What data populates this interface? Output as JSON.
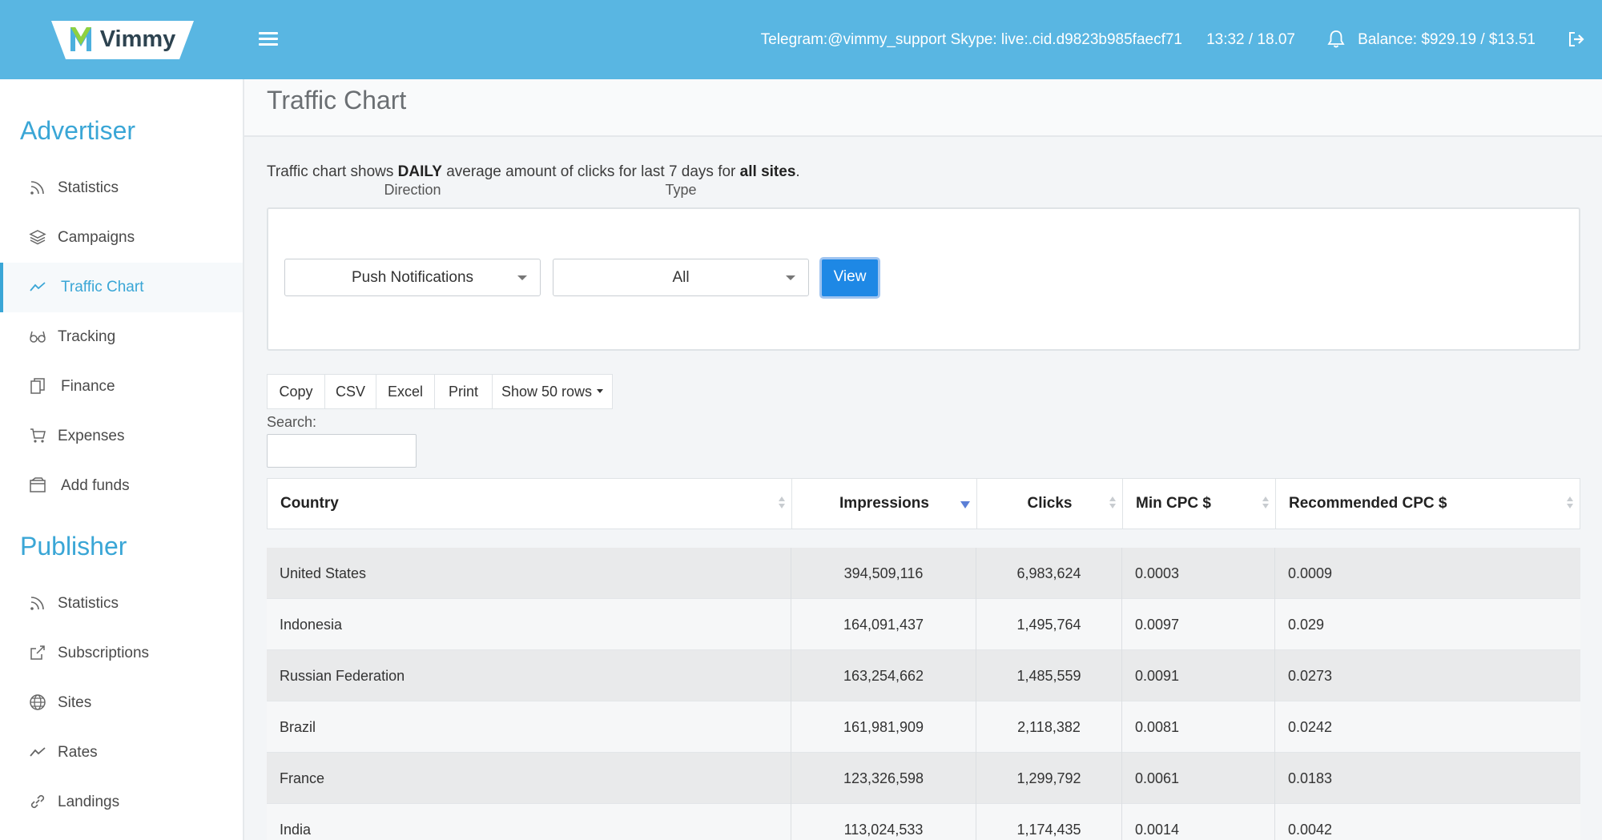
{
  "header": {
    "logo_text": "Vimmy",
    "contacts": "Telegram:@vimmy_support Skype: live:.cid.d9823b985faecf71",
    "time": "13:32 / 18.07",
    "balance": "Balance: $929.19 / $13.51"
  },
  "sidebar": {
    "advertiser_heading": "Advertiser",
    "advertiser_items": [
      {
        "label": "Statistics",
        "icon": "rss-icon"
      },
      {
        "label": "Campaigns",
        "icon": "layers-icon"
      },
      {
        "label": "Traffic Chart",
        "icon": "trend-line-icon",
        "active": true
      },
      {
        "label": "Tracking",
        "icon": "glasses-icon"
      },
      {
        "label": "Finance",
        "icon": "documents-icon"
      },
      {
        "label": "Expenses",
        "icon": "cart-icon"
      },
      {
        "label": "Add funds",
        "icon": "wallet-icon"
      }
    ],
    "publisher_heading": "Publisher",
    "publisher_items": [
      {
        "label": "Statistics",
        "icon": "rss-icon"
      },
      {
        "label": "Subscriptions",
        "icon": "share-icon"
      },
      {
        "label": "Sites",
        "icon": "globe-icon"
      },
      {
        "label": "Rates",
        "icon": "trend-line-icon"
      },
      {
        "label": "Landings",
        "icon": "link-icon"
      }
    ]
  },
  "main": {
    "title": "Traffic Chart",
    "description": {
      "part1": "Traffic chart shows ",
      "bold1": "DAILY",
      "part2": " average amount of clicks for last 7 days for ",
      "bold2": "all sites",
      "part3": "."
    },
    "filters": {
      "direction_label": "Direction",
      "direction_value": "Push Notifications",
      "type_label": "Type",
      "type_value": "All",
      "view_button": "View"
    },
    "toolbar": {
      "copy": "Copy",
      "csv": "CSV",
      "excel": "Excel",
      "print": "Print",
      "show_rows": "Show 50 rows"
    },
    "search": {
      "label": "Search:",
      "value": ""
    },
    "table": {
      "columns": [
        "Country",
        "Impressions",
        "Clicks",
        "Min CPC $",
        "Recommended CPC $"
      ],
      "rows": [
        [
          "United States",
          "394,509,116",
          "6,983,624",
          "0.0003",
          "0.0009"
        ],
        [
          "Indonesia",
          "164,091,437",
          "1,495,764",
          "0.0097",
          "0.029"
        ],
        [
          "Russian Federation",
          "163,254,662",
          "1,485,559",
          "0.0091",
          "0.0273"
        ],
        [
          "Brazil",
          "161,981,909",
          "2,118,382",
          "0.0081",
          "0.0242"
        ],
        [
          "France",
          "123,326,598",
          "1,299,792",
          "0.0061",
          "0.0183"
        ],
        [
          "India",
          "113,024,533",
          "1,174,435",
          "0.0014",
          "0.0042"
        ]
      ]
    }
  },
  "colors": {
    "header_bg": "#59b6e2",
    "accent": "#3aa6d6",
    "primary_button": "#1e88e5"
  }
}
